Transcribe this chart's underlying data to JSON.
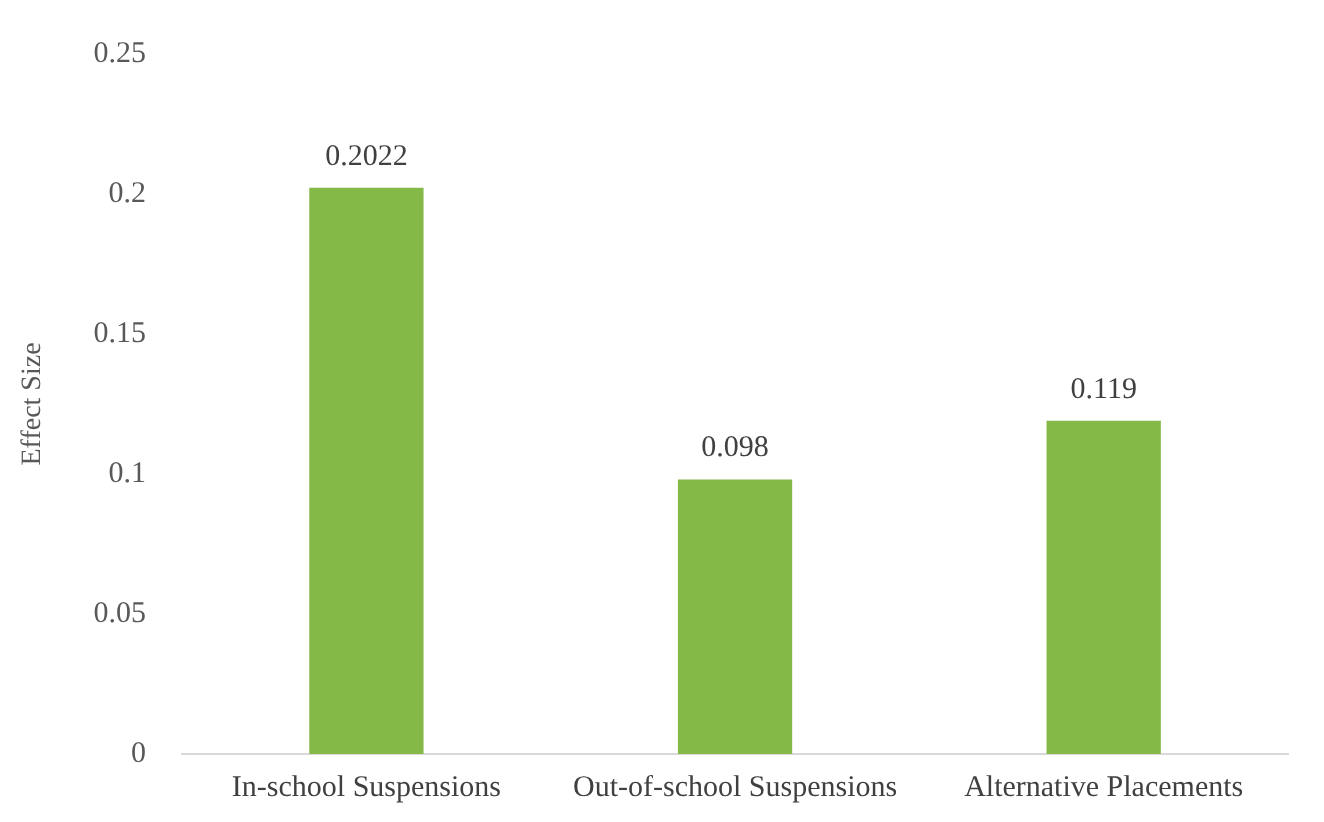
{
  "chart_data": {
    "type": "bar",
    "ylabel": "Effect Size",
    "categories": [
      "In-school Suspensions",
      "Out-of-school Suspensions",
      "Alternative Placements"
    ],
    "values": [
      0.2022,
      0.098,
      0.119
    ],
    "color": "#84b847",
    "ylim": [
      0,
      0.25
    ],
    "yticks": [
      0,
      0.05,
      0.1,
      0.15,
      0.2,
      0.25
    ],
    "grid": false,
    "legend": false,
    "data_labels": true
  }
}
